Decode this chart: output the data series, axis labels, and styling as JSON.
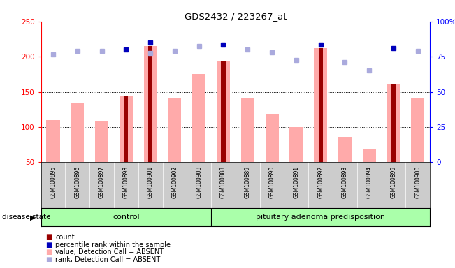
{
  "title": "GDS2432 / 223267_at",
  "samples": [
    "GSM100895",
    "GSM100896",
    "GSM100897",
    "GSM100898",
    "GSM100901",
    "GSM100902",
    "GSM100903",
    "GSM100888",
    "GSM100889",
    "GSM100890",
    "GSM100891",
    "GSM100892",
    "GSM100893",
    "GSM100894",
    "GSM100899",
    "GSM100900"
  ],
  "group_labels": [
    "control",
    "pituitary adenoma predisposition"
  ],
  "group_sizes": [
    7,
    9
  ],
  "pink_bars": [
    110,
    135,
    108,
    145,
    215,
    142,
    175,
    193,
    142,
    118,
    100,
    212,
    85,
    68,
    160,
    142
  ],
  "dark_red_bars": [
    0,
    0,
    0,
    145,
    215,
    0,
    0,
    193,
    0,
    0,
    0,
    212,
    0,
    0,
    160,
    0
  ],
  "blue_dark": [
    0,
    0,
    0,
    210,
    220,
    0,
    0,
    217,
    0,
    0,
    0,
    217,
    0,
    0,
    212,
    0
  ],
  "blue_light": [
    203,
    208,
    208,
    0,
    205,
    208,
    215,
    0,
    210,
    206,
    195,
    0,
    192,
    180,
    0,
    208
  ],
  "ylim_left": [
    50,
    250
  ],
  "ylim_right": [
    0,
    100
  ],
  "yticks_left": [
    50,
    100,
    150,
    200,
    250
  ],
  "yticks_right": [
    0,
    25,
    50,
    75,
    100
  ],
  "ytick_labels_right": [
    "0",
    "25",
    "50",
    "75",
    "100%"
  ],
  "hlines": [
    100,
    150,
    200
  ],
  "pink_color": "#ffaaaa",
  "dark_red_color": "#990000",
  "blue_dark_color": "#0000bb",
  "blue_light_color": "#aaaadd",
  "group_color": "#aaffaa",
  "legend_items": [
    "count",
    "percentile rank within the sample",
    "value, Detection Call = ABSENT",
    "rank, Detection Call = ABSENT"
  ]
}
